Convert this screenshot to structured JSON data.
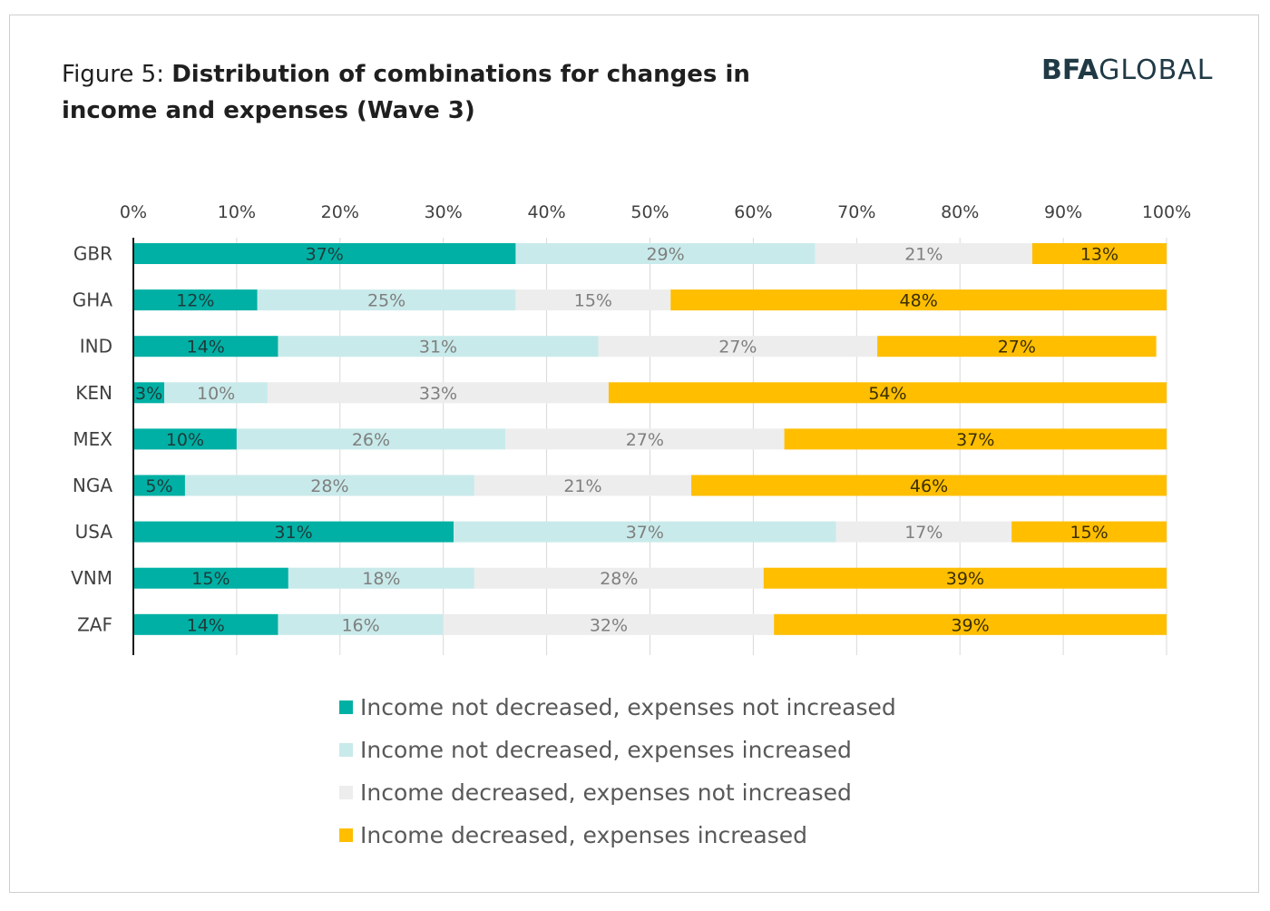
{
  "title": {
    "prefix": "Figure 5: ",
    "text": "Distribution of combinations for changes in income and expenses (Wave 3)"
  },
  "logo": {
    "part1": "BFA",
    "part2": "GLOBAL",
    "color": "#203a45"
  },
  "chart_data": {
    "type": "bar",
    "orientation": "horizontal",
    "stacked": true,
    "categories": [
      "GBR",
      "GHA",
      "IND",
      "KEN",
      "MEX",
      "NGA",
      "USA",
      "VNM",
      "ZAF"
    ],
    "x_ticks": [
      "0%",
      "10%",
      "20%",
      "30%",
      "40%",
      "50%",
      "60%",
      "70%",
      "80%",
      "90%",
      "100%"
    ],
    "xlim": [
      0,
      100
    ],
    "x_axis_position": "top",
    "grid": "vertical",
    "legend_position": "bottom",
    "series": [
      {
        "name": "Income not decreased, expenses not increased",
        "color": "#00b0a4",
        "label_color": "#1f3a3a",
        "values": [
          37,
          12,
          14,
          3,
          10,
          5,
          31,
          15,
          14
        ]
      },
      {
        "name": "Income not decreased, expenses increased",
        "color": "#c9eaea",
        "label_color": "#7f7f7f",
        "values": [
          29,
          25,
          31,
          10,
          26,
          28,
          37,
          18,
          16
        ]
      },
      {
        "name": "Income decreased, expenses not increased",
        "color": "#ededed",
        "label_color": "#7f7f7f",
        "values": [
          21,
          15,
          27,
          33,
          27,
          21,
          17,
          28,
          32
        ]
      },
      {
        "name": "Income decreased, expenses increased",
        "color": "#ffbe00",
        "label_color": "#3a2e00",
        "values": [
          13,
          48,
          27,
          54,
          37,
          46,
          15,
          39,
          39
        ]
      }
    ]
  }
}
